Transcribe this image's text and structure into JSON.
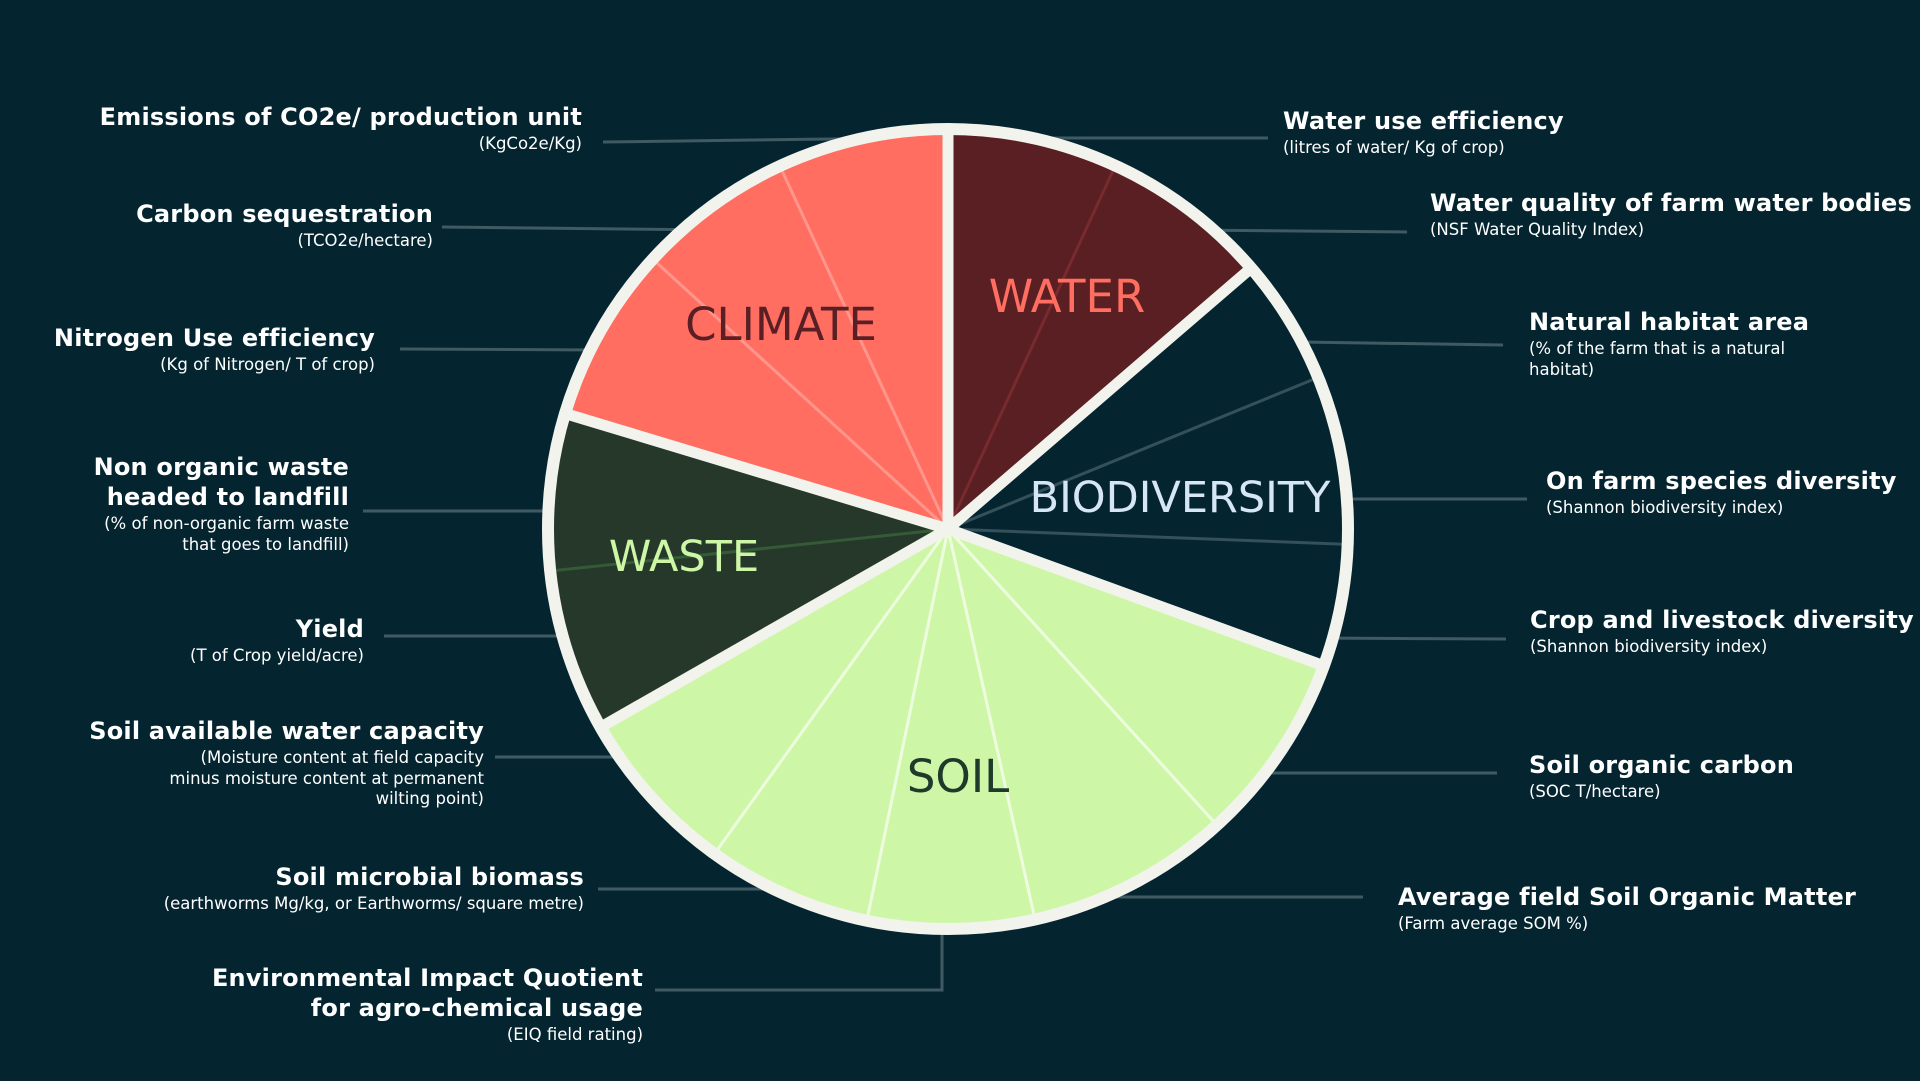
{
  "categories": [
    {
      "key": "climate",
      "label": "CLIMATE",
      "fill": "#FF6E61",
      "label_color": "#5A1F25"
    },
    {
      "key": "water",
      "label": "WATER",
      "fill": "#5A1F22",
      "label_color": "#FF6E61"
    },
    {
      "key": "biodiversity",
      "label": "BIODIVERSITY",
      "fill": "#042530",
      "label_color": "#D6E6F4"
    },
    {
      "key": "soil",
      "label": "SOIL",
      "fill": "#CDF7A6",
      "label_color": "#1E3A2A"
    },
    {
      "key": "waste",
      "label": "WASTE",
      "fill": "#26382A",
      "label_color": "#CDF7A6"
    }
  ],
  "colors": {
    "background": "#042530",
    "rim": "#F3F3EE",
    "connector": "#3F5A63"
  },
  "metrics": {
    "m1": {
      "title": "Emissions of CO2e/ production unit",
      "sub": "(KgCo2e/Kg)"
    },
    "m2": {
      "title": "Carbon sequestration",
      "sub": "(TCO2e/hectare)"
    },
    "m3": {
      "title": "Nitrogen Use efficiency",
      "sub": "(Kg of Nitrogen/ T of crop)"
    },
    "m4": {
      "title1": "Non organic waste",
      "title2": "headed to landfill",
      "sub1": "(% of non-organic farm waste",
      "sub2": "that goes to landfill)"
    },
    "m5": {
      "title": "Yield",
      "sub": "(T of Crop yield/acre)"
    },
    "m6": {
      "title": "Soil available water capacity",
      "sub1": "(Moisture content at field capacity",
      "sub2": "minus moisture content at permanent",
      "sub3": "wilting point)"
    },
    "m7": {
      "title": "Soil microbial biomass",
      "sub": "(earthworms Mg/kg, or Earthworms/ square metre)"
    },
    "m8": {
      "title1": "Environmental Impact Quotient",
      "title2": "for agro-chemical usage",
      "sub": "(EIQ field rating)"
    },
    "m9": {
      "title": "Water use efficiency",
      "sub": "(litres of water/ Kg of crop)"
    },
    "m10": {
      "title": "Water quality of farm water bodies",
      "sub": "(NSF Water Quality Index)"
    },
    "m11": {
      "title": "Natural habitat area",
      "sub1": "(% of the farm that is a natural",
      "sub2": "habitat)"
    },
    "m12": {
      "title": "On farm species diversity",
      "sub": "(Shannon biodiversity index)"
    },
    "m13": {
      "title": "Crop and livestock diversity",
      "sub": "(Shannon biodiversity index)"
    },
    "m14": {
      "title": "Soil organic carbon",
      "sub": "(SOC T/hectare)"
    },
    "m15": {
      "title": "Average field Soil Organic Matter",
      "sub": "(Farm average SOM %)"
    }
  }
}
